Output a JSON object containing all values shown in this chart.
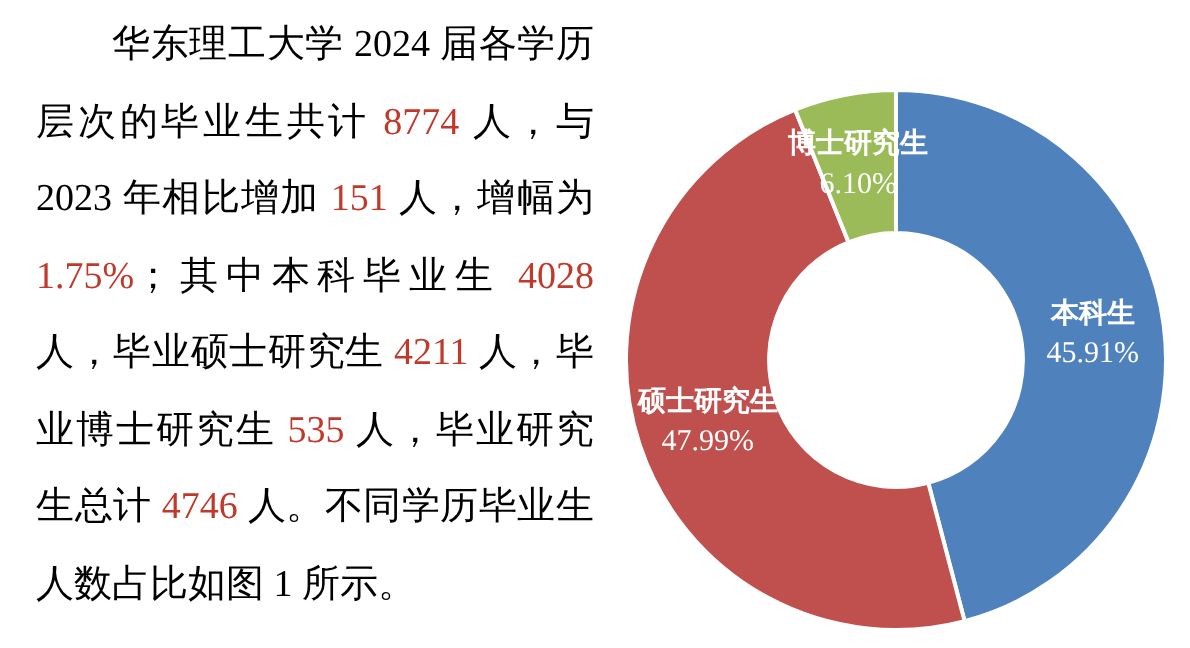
{
  "chart_data": {
    "type": "donut",
    "categories": [
      "本科生",
      "硕士研究生",
      "博士研究生"
    ],
    "values": [
      45.91,
      47.99,
      6.1
    ],
    "colors": [
      "#4f81bd",
      "#c0504d",
      "#9bbb59"
    ],
    "value_labels": [
      "45.91%",
      "47.99%",
      "6.10%"
    ],
    "legend": false,
    "annotations": [
      "华东理工大学 2024 届各学历层次的毕业生共计 8774 人，与 2023 年相比增加 151 人，增幅为 1.75%；其中本科毕业生 4028 人，毕业硕士研究生 4211 人，毕业博士研究生 535 人，毕业研究生总计 4746 人。不同学历毕业生人数占比如图 1 所示。"
    ]
  }
}
